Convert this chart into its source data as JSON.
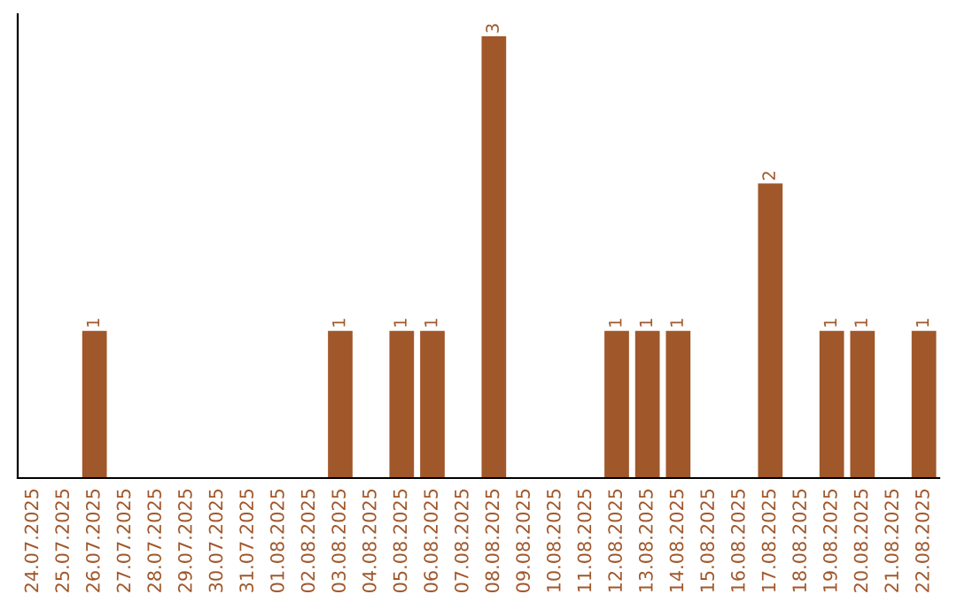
{
  "chart_data": {
    "type": "bar",
    "categories": [
      "24.07.2025",
      "25.07.2025",
      "26.07.2025",
      "27.07.2025",
      "28.07.2025",
      "29.07.2025",
      "30.07.2025",
      "31.07.2025",
      "01.08.2025",
      "02.08.2025",
      "03.08.2025",
      "04.08.2025",
      "05.08.2025",
      "06.08.2025",
      "07.08.2025",
      "08.08.2025",
      "09.08.2025",
      "10.08.2025",
      "11.08.2025",
      "12.08.2025",
      "13.08.2025",
      "14.08.2025",
      "15.08.2025",
      "16.08.2025",
      "17.08.2025",
      "18.08.2025",
      "19.08.2025",
      "20.08.2025",
      "21.08.2025",
      "22.08.2025"
    ],
    "values": [
      0,
      0,
      1,
      0,
      0,
      0,
      0,
      0,
      0,
      0,
      1,
      0,
      1,
      1,
      0,
      3,
      0,
      0,
      0,
      1,
      1,
      1,
      0,
      0,
      2,
      0,
      1,
      1,
      0,
      1
    ],
    "value_labels": [
      null,
      null,
      "1",
      null,
      null,
      null,
      null,
      null,
      null,
      null,
      "1",
      null,
      "1",
      "1",
      null,
      "3",
      null,
      null,
      null,
      "1",
      "1",
      "1",
      null,
      null,
      "2",
      null,
      "1",
      "1",
      null,
      "1"
    ],
    "color": "#a0572a",
    "tick_labels": "x",
    "grid": false,
    "legend": false
  }
}
